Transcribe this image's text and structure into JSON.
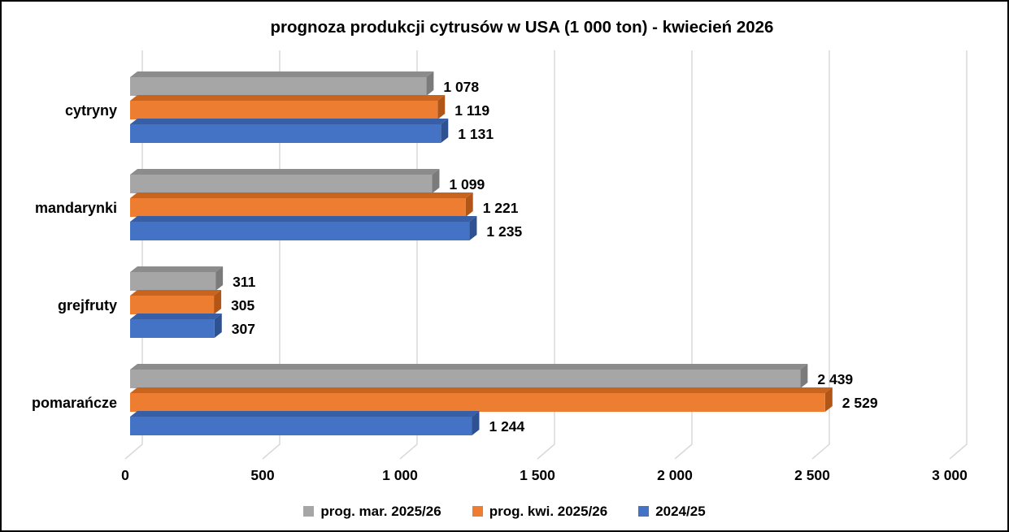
{
  "chart_data": {
    "type": "bar",
    "orientation": "horizontal",
    "style": "3d",
    "title": "prognoza produkcji cytrusów w USA (1 000 ton) - kwiecień 2026",
    "categories": [
      "cytryny",
      "mandarynki",
      "grejfruty",
      "pomarańcze"
    ],
    "series": [
      {
        "name": "prog. mar. 2025/26",
        "color": "#A6A6A6",
        "top_color": "#8C8C8C",
        "side_color": "#7B7B7B",
        "values": [
          1078,
          1099,
          311,
          2439
        ],
        "value_labels": [
          "1 078",
          "1 099",
          "311",
          "2 439"
        ]
      },
      {
        "name": "prog. kwi. 2025/26",
        "color": "#ED7D31",
        "top_color": "#C9641F",
        "side_color": "#B25618",
        "values": [
          1119,
          1221,
          305,
          2529
        ],
        "value_labels": [
          "1 119",
          "1 221",
          "305",
          "2 529"
        ]
      },
      {
        "name": "2024/25",
        "color": "#4472C4",
        "top_color": "#385EA6",
        "side_color": "#2E5191",
        "values": [
          1131,
          1235,
          307,
          1244
        ],
        "value_labels": [
          "1 131",
          "1 235",
          "307",
          "1 244"
        ]
      }
    ],
    "x_axis": {
      "min": 0,
      "max": 3000,
      "step": 500,
      "tick_labels": [
        "0",
        "500",
        "1 000",
        "1 500",
        "2 000",
        "2 500",
        "3 000"
      ]
    },
    "grid": true,
    "gridline_color": "#D9D9D9",
    "text_color": "#000000",
    "legend_position": "bottom"
  }
}
